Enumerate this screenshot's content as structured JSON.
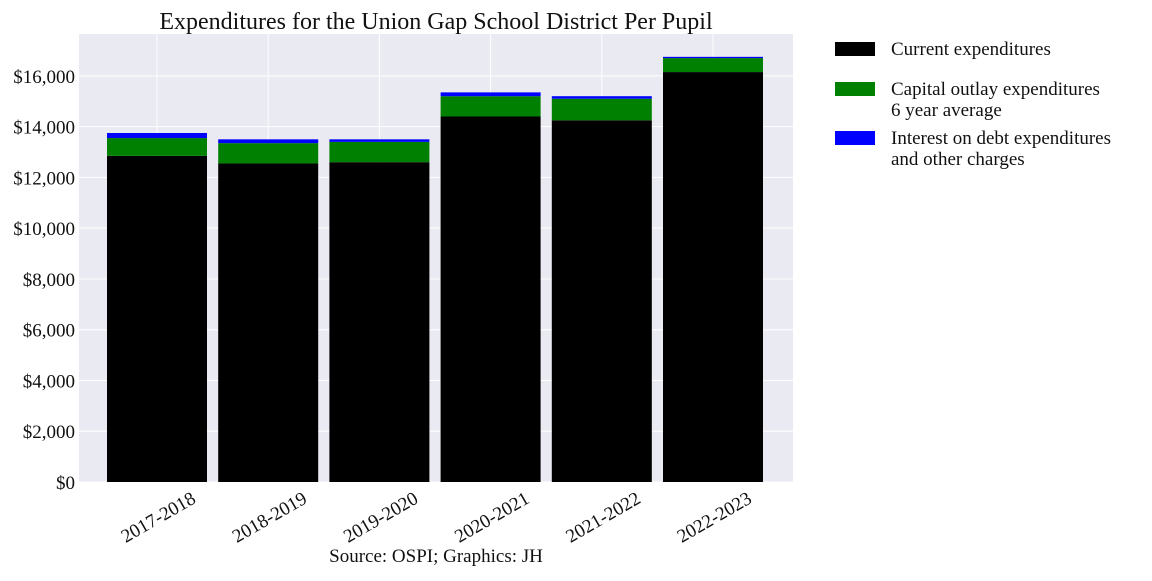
{
  "chart_data": {
    "type": "bar",
    "stacked": true,
    "title": "Expenditures for the Union Gap School District Per Pupil",
    "source": "Source: OSPI; Graphics: JH",
    "categories": [
      "2017-2018",
      "2018-2019",
      "2019-2020",
      "2020-2021",
      "2021-2022",
      "2022-2023"
    ],
    "series": [
      {
        "legend_lines": [
          "Current expenditures"
        ],
        "color": "#000000",
        "values": [
          12850,
          12550,
          12600,
          14400,
          14250,
          16150
        ]
      },
      {
        "legend_lines": [
          "Capital outlay expenditures",
          "6 year average"
        ],
        "color": "#008000",
        "values": [
          700,
          800,
          800,
          800,
          850,
          550
        ]
      },
      {
        "legend_lines": [
          "Interest on debt expenditures",
          "and other charges"
        ],
        "color": "#0000ff",
        "values": [
          200,
          150,
          100,
          150,
          100,
          50
        ]
      }
    ],
    "y_ticks": [
      "$0",
      "$2,000",
      "$4,000",
      "$6,000",
      "$8,000",
      "$10,000",
      "$12,000",
      "$14,000",
      "$16,000"
    ],
    "y_tick_values": [
      0,
      2000,
      4000,
      6000,
      8000,
      10000,
      12000,
      14000,
      16000
    ],
    "ylim": [
      0,
      17650
    ],
    "grid": true,
    "legend_position": "outside-right",
    "plot_background": "#eaeaf2",
    "grid_color": "#ffffff"
  }
}
